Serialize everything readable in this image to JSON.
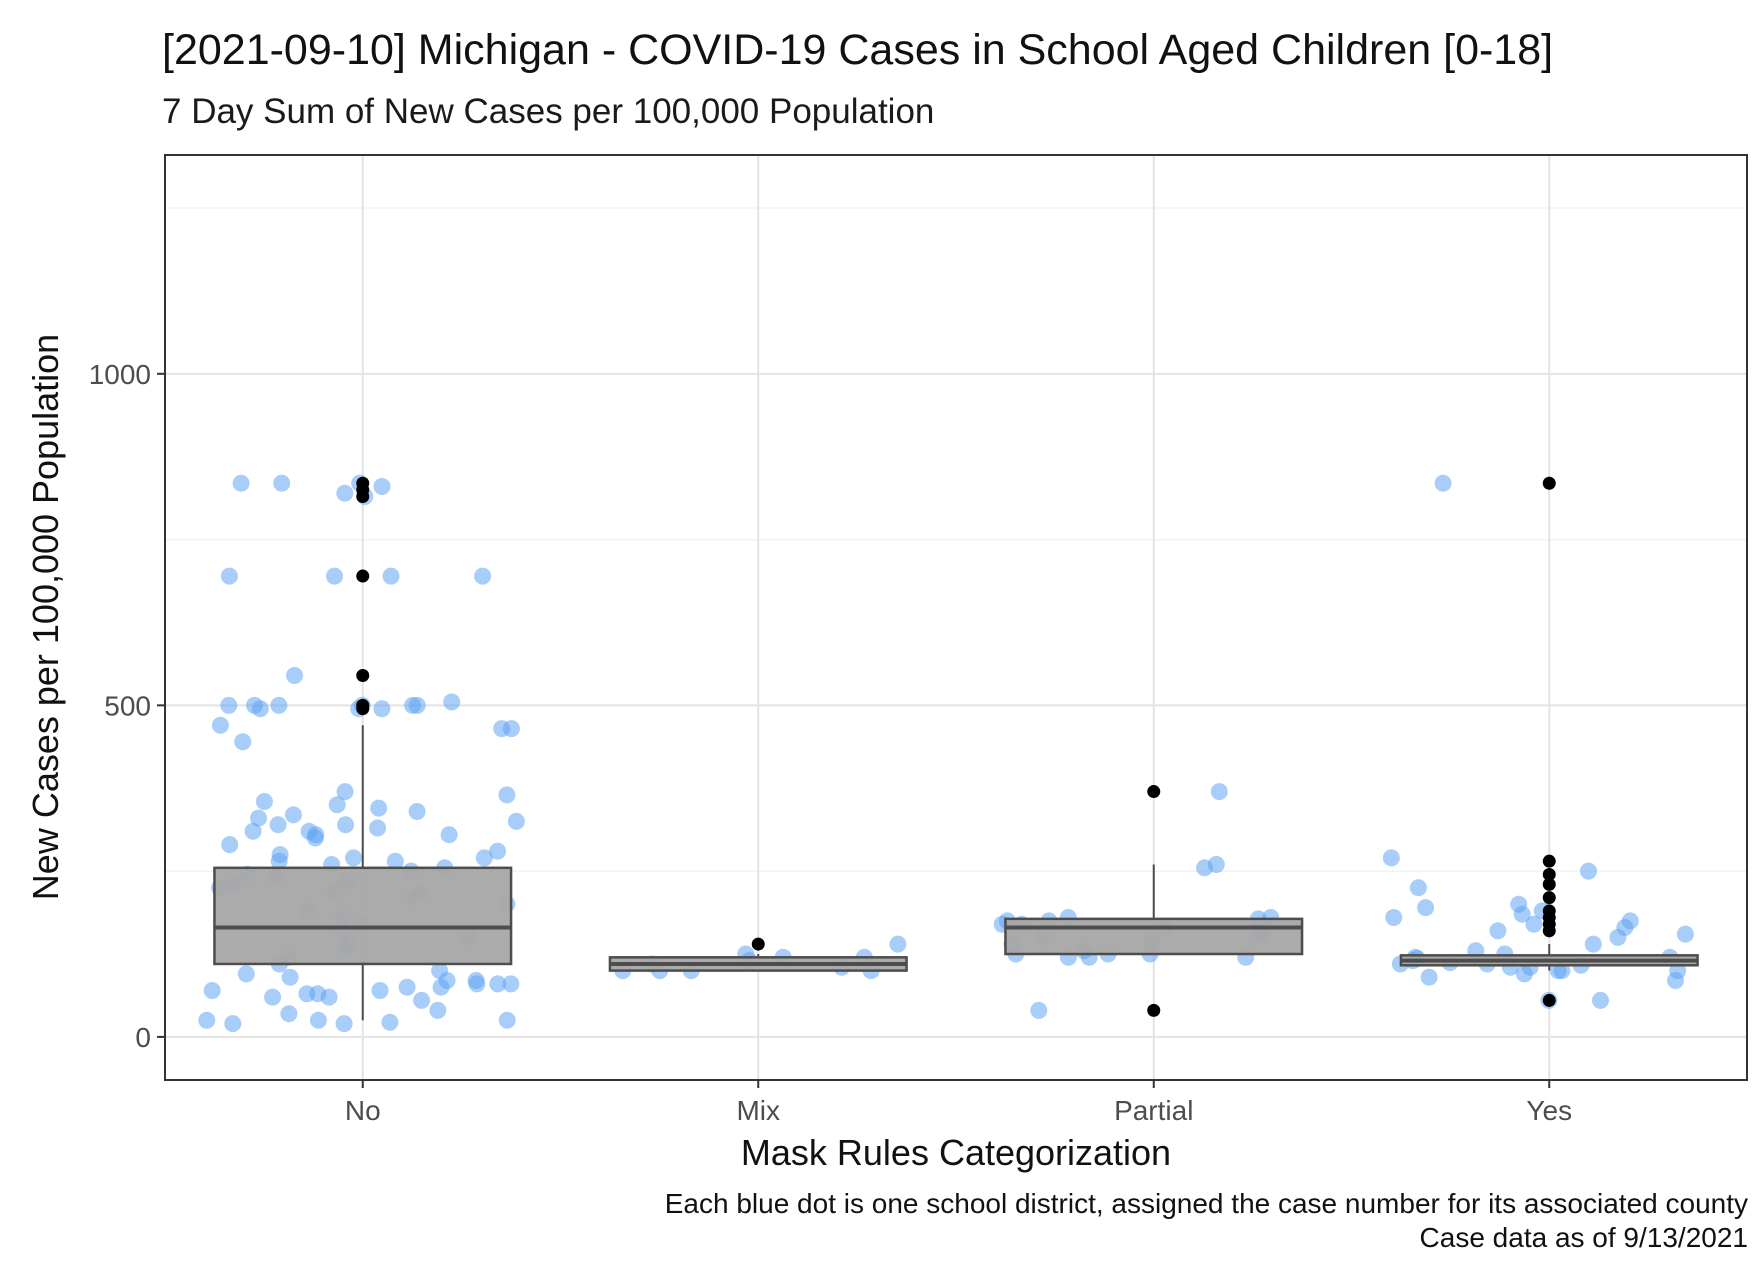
{
  "chart_data": {
    "type": "box+jitter",
    "title": "[2021-09-10] Michigan - COVID-19 Cases in School Aged Children [0-18]",
    "subtitle": "7 Day Sum of New Cases per 100,000 Population",
    "xlabel": "Mask Rules Categorization",
    "ylabel": "New Cases per 100,000 Population",
    "categories": [
      "No",
      "Mix",
      "Partial",
      "Yes"
    ],
    "ylim": [
      -65,
      1330
    ],
    "yticks": [
      0,
      500,
      1000
    ],
    "ytick_labels": [
      "0",
      "500",
      "1000"
    ],
    "grid": true,
    "colors": {
      "points": "#5ea4f2",
      "box_fill": "#a6a6a6",
      "box_line": "#4d4d4d",
      "outlier": "#000000"
    },
    "boxes": [
      {
        "category": "No",
        "q1": 110,
        "median": 165,
        "q3": 255,
        "whisker_low": 25,
        "whisker_high": 470,
        "outliers": [
          495,
          500,
          545,
          695,
          815,
          825,
          835
        ]
      },
      {
        "category": "Mix",
        "q1": 100,
        "median": 110,
        "q3": 120,
        "whisker_low": 100,
        "whisker_high": 125,
        "outliers": [
          140
        ]
      },
      {
        "category": "Partial",
        "q1": 125,
        "median": 165,
        "q3": 178,
        "whisker_low": 125,
        "whisker_high": 260,
        "outliers": [
          40,
          370
        ]
      },
      {
        "category": "Yes",
        "q1": 108,
        "median": 115,
        "q3": 123,
        "whisker_low": 100,
        "whisker_high": 140,
        "outliers": [
          55,
          160,
          170,
          180,
          190,
          210,
          230,
          245,
          265,
          835
        ]
      }
    ],
    "points": [
      {
        "category": "No",
        "values": [
          835,
          830,
          835,
          835,
          820,
          815,
          695,
          695,
          695,
          695,
          545,
          505,
          500,
          500,
          500,
          500,
          500,
          500,
          495,
          495,
          495,
          470,
          465,
          465,
          445,
          370,
          365,
          355,
          350,
          345,
          340,
          335,
          330,
          325,
          320,
          320,
          315,
          310,
          310,
          305,
          305,
          300,
          290,
          280,
          275,
          270,
          270,
          265,
          265,
          260,
          255,
          250,
          245,
          240,
          235,
          230,
          225,
          220,
          215,
          210,
          200,
          190,
          180,
          170,
          160,
          150,
          140,
          130,
          120,
          110,
          100,
          95,
          90,
          85,
          85,
          80,
          80,
          80,
          75,
          75,
          70,
          70,
          65,
          65,
          60,
          60,
          55,
          40,
          35,
          25,
          25,
          25,
          22,
          20,
          20
        ]
      },
      {
        "category": "Mix",
        "values": [
          140,
          125,
          120,
          120,
          115,
          110,
          105,
          100,
          100,
          100,
          100
        ]
      },
      {
        "category": "Partial",
        "values": [
          370,
          260,
          255,
          180,
          180,
          178,
          175,
          175,
          170,
          170,
          165,
          160,
          155,
          150,
          145,
          140,
          130,
          125,
          125,
          125,
          120,
          120,
          120,
          40
        ]
      },
      {
        "category": "Yes",
        "values": [
          835,
          270,
          250,
          225,
          200,
          195,
          190,
          185,
          180,
          175,
          170,
          165,
          160,
          155,
          150,
          140,
          130,
          125,
          120,
          120,
          118,
          115,
          112,
          110,
          110,
          108,
          105,
          105,
          100,
          100,
          100,
          95,
          90,
          85,
          55,
          55
        ]
      }
    ]
  },
  "caption": {
    "line1": "Each blue dot is one school district, assigned the case number for its associated county",
    "line2": "Case data as of 9/13/2021"
  }
}
